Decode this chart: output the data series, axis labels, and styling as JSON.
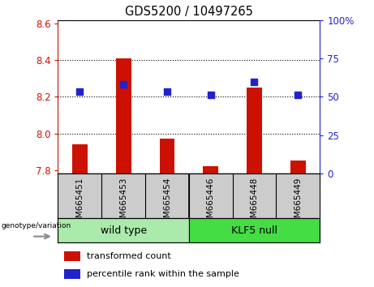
{
  "title": "GDS5200 / 10497265",
  "samples": [
    "GSM665451",
    "GSM665453",
    "GSM665454",
    "GSM665446",
    "GSM665448",
    "GSM665449"
  ],
  "red_values": [
    7.94,
    8.41,
    7.97,
    7.82,
    8.25,
    7.85
  ],
  "blue_values_left_scale": [
    8.23,
    8.27,
    8.23,
    8.21,
    8.28,
    8.21
  ],
  "ylim_left": [
    7.78,
    8.62
  ],
  "ylim_right": [
    0,
    100
  ],
  "yticks_left": [
    7.8,
    8.0,
    8.2,
    8.4,
    8.6
  ],
  "yticks_right": [
    0,
    25,
    50,
    75,
    100
  ],
  "ytick_labels_right": [
    "0",
    "25",
    "50",
    "75",
    "100%"
  ],
  "bar_bottom": 7.78,
  "group_wt_label": "wild type",
  "group_klf_label": "KLF5 null",
  "group_wt_color": "#aaeaaa",
  "group_klf_color": "#44dd44",
  "red_color": "#cc1100",
  "blue_color": "#2222cc",
  "legend_red": "transformed count",
  "legend_blue": "percentile rank within the sample",
  "genotype_label": "genotype/variation",
  "xticklabel_bg": "#cccccc",
  "blue_square_size": 30
}
